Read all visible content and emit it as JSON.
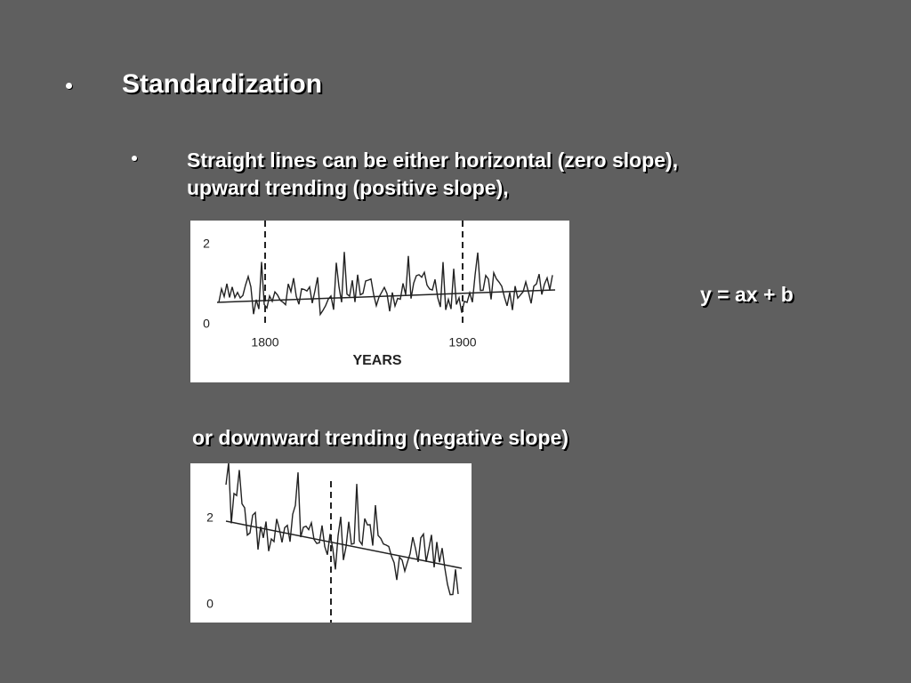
{
  "heading": "Standardization",
  "subpoint": {
    "lines": [
      "Straight lines can be either horizontal (zero slope),",
      "upward trending (positive slope),"
    ]
  },
  "figure1": {
    "yticks": [
      "2",
      "0"
    ],
    "xticks": [
      "1800",
      "1900"
    ],
    "xlabel": "YEARS"
  },
  "equation": "y = ax + b",
  "caption2": "or downward trending (negative slope)",
  "figure2": {
    "yticks": [
      "2",
      "0"
    ]
  }
}
